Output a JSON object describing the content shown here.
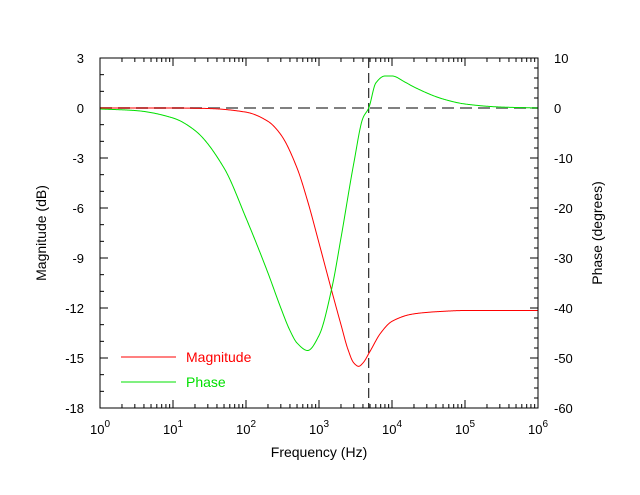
{
  "chart_data": {
    "type": "line",
    "title": "",
    "xlabel": "Frequency (Hz)",
    "ylabel_left": "Magnitude (dB)",
    "ylabel_right": "Phase (degrees)",
    "x_scale": "log",
    "xlim": [
      1,
      1000000
    ],
    "ylim_left": [
      -18,
      3
    ],
    "ylim_right": [
      -60,
      10
    ],
    "x_ticks": [
      {
        "base": "10",
        "exp": "0"
      },
      {
        "base": "10",
        "exp": "1"
      },
      {
        "base": "10",
        "exp": "2"
      },
      {
        "base": "10",
        "exp": "3"
      },
      {
        "base": "10",
        "exp": "4"
      },
      {
        "base": "10",
        "exp": "5"
      },
      {
        "base": "10",
        "exp": "6"
      }
    ],
    "y_left_ticks": [
      "3",
      "0",
      "-3",
      "-6",
      "-9",
      "-12",
      "-15",
      "-18"
    ],
    "y_right_ticks": [
      "10",
      "0",
      "-10",
      "-20",
      "-30",
      "-40",
      "-50",
      "-60"
    ],
    "grid": false,
    "legend_position": "lower-left",
    "reference_lines": [
      {
        "orientation": "horizontal",
        "axis": "left",
        "value": 0,
        "style": "dashed",
        "color": "#808080"
      },
      {
        "orientation": "vertical",
        "value": 4800,
        "style": "dashed",
        "color": "#000000"
      }
    ],
    "series": [
      {
        "name": "Magnitude",
        "axis": "left",
        "color": "#ff0000",
        "points": [
          [
            1,
            0.0
          ],
          [
            10,
            0.0
          ],
          [
            30,
            -0.03
          ],
          [
            100,
            -0.25
          ],
          [
            200,
            -0.8
          ],
          [
            300,
            -1.6
          ],
          [
            500,
            -3.6
          ],
          [
            700,
            -5.6
          ],
          [
            1000,
            -8.1
          ],
          [
            1500,
            -11.0
          ],
          [
            2000,
            -13.0
          ],
          [
            2500,
            -14.5
          ],
          [
            3000,
            -15.3
          ],
          [
            3500,
            -15.5
          ],
          [
            4000,
            -15.3
          ],
          [
            5000,
            -14.6
          ],
          [
            7000,
            -13.5
          ],
          [
            10000,
            -12.8
          ],
          [
            20000,
            -12.35
          ],
          [
            50000,
            -12.2
          ],
          [
            100000,
            -12.15
          ],
          [
            1000000,
            -12.15
          ]
        ]
      },
      {
        "name": "Phase",
        "axis": "right",
        "color": "#00e000",
        "points": [
          [
            1,
            -0.2
          ],
          [
            3,
            -0.5
          ],
          [
            10,
            -2
          ],
          [
            20,
            -4.5
          ],
          [
            50,
            -12
          ],
          [
            100,
            -22
          ],
          [
            200,
            -33
          ],
          [
            300,
            -40
          ],
          [
            400,
            -44.5
          ],
          [
            500,
            -47
          ],
          [
            700,
            -48.5
          ],
          [
            1000,
            -45.5
          ],
          [
            1500,
            -36
          ],
          [
            2000,
            -26
          ],
          [
            3000,
            -11
          ],
          [
            4000,
            -2
          ],
          [
            4800,
            0
          ],
          [
            6000,
            5
          ],
          [
            8000,
            6.4
          ],
          [
            10000,
            6.4
          ],
          [
            15000,
            5.2
          ],
          [
            20000,
            4.2
          ],
          [
            50000,
            1.8
          ],
          [
            100000,
            0.8
          ],
          [
            300000,
            0.2
          ],
          [
            1000000,
            0.0
          ]
        ]
      }
    ]
  }
}
